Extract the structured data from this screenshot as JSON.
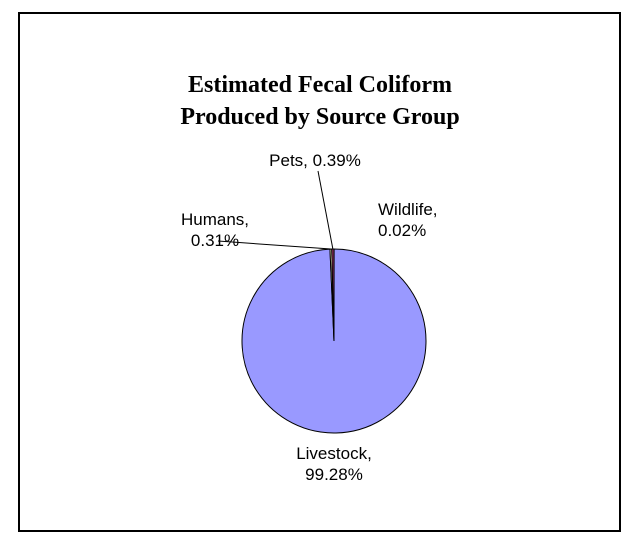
{
  "chart_data": {
    "type": "pie",
    "title": "Estimated Fecal Coliform Produced by Source Group",
    "title_lines": [
      "Estimated Fecal Coliform",
      "Produced by Source Group"
    ],
    "slices": [
      {
        "name": "Wildlife",
        "value": 0.02,
        "label_lines": [
          "Wildlife,",
          "0.02%"
        ],
        "color": "#FFFFCC"
      },
      {
        "name": "Livestock",
        "value": 99.28,
        "label_lines": [
          "Livestock,",
          "99.28%"
        ],
        "color": "#9999FF"
      },
      {
        "name": "Humans",
        "value": 0.31,
        "label_lines": [
          "Humans,",
          "0.31%"
        ],
        "color": "#FFFFCC"
      },
      {
        "name": "Pets",
        "value": 0.39,
        "label_lines": [
          "Pets, 0.39%"
        ],
        "color": "#993366"
      }
    ],
    "slice_outline_color": "#000000",
    "legend": "none",
    "grid": false
  }
}
